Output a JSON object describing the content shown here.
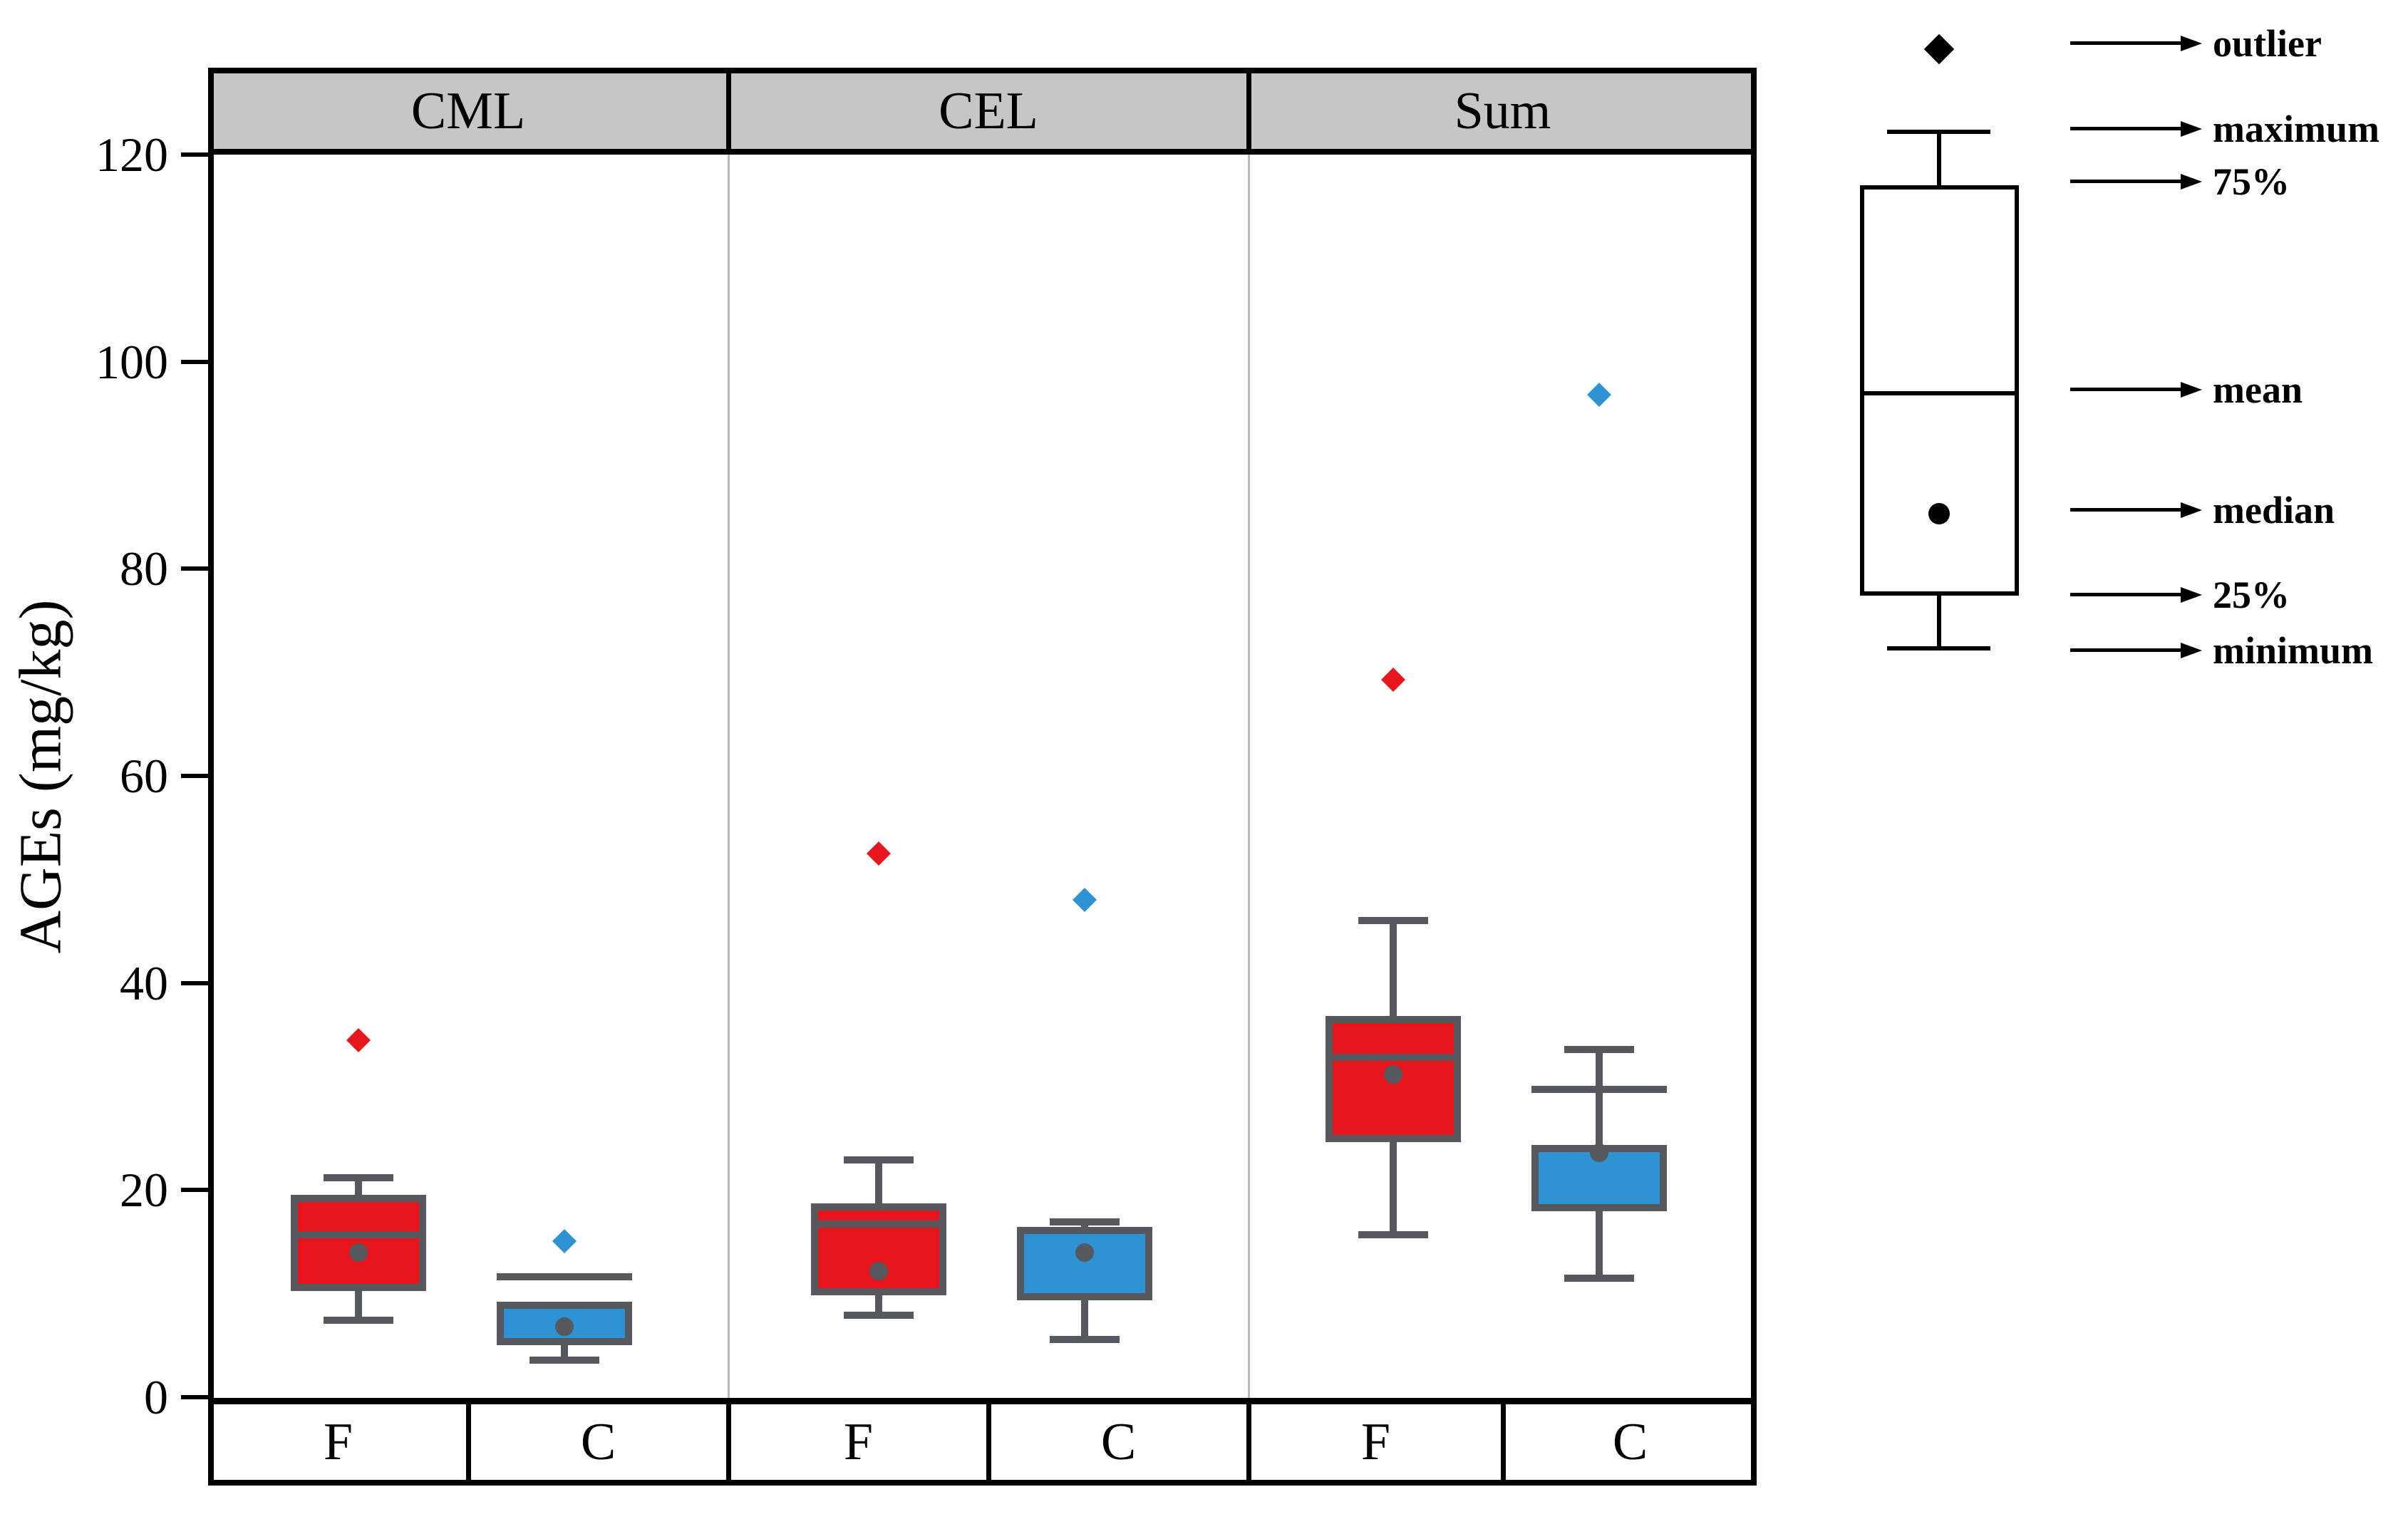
{
  "chart_data": {
    "type": "box",
    "title": "",
    "ylabel": "AGEs (mg/kg)",
    "ylim": [
      0,
      120
    ],
    "yticks": [
      0,
      20,
      40,
      60,
      80,
      100,
      120
    ],
    "grid": false,
    "panels": [
      "CML",
      "CEL",
      "Sum"
    ],
    "group_labels": [
      "F",
      "C"
    ],
    "legend_items": [
      "outlier",
      "maximum",
      "75%",
      "mean",
      "median",
      "25%",
      "minimum"
    ],
    "series": [
      {
        "panel": "CML",
        "group": "F",
        "min": 7.4,
        "q1": 10.6,
        "median": 14.0,
        "mean": 15.7,
        "q3": 19.2,
        "max": 21.2,
        "outliers": [
          34.5
        ]
      },
      {
        "panel": "CML",
        "group": "C",
        "min": 3.6,
        "q1": 5.4,
        "median": 6.8,
        "mean": 11.6,
        "q3": 8.9,
        "max": null,
        "outliers": [
          15.1
        ]
      },
      {
        "panel": "CEL",
        "group": "F",
        "min": 7.9,
        "q1": 10.2,
        "median": 12.2,
        "mean": 16.7,
        "q3": 18.4,
        "max": 22.9,
        "outliers": [
          52.5
        ]
      },
      {
        "panel": "CEL",
        "group": "C",
        "min": 5.6,
        "q1": 9.7,
        "median": 14.0,
        "mean": null,
        "q3": 16.1,
        "max": 16.9,
        "outliers": [
          48.0
        ]
      },
      {
        "panel": "Sum",
        "group": "F",
        "min": 15.7,
        "q1": 25.0,
        "median": 31.2,
        "mean": 32.8,
        "q3": 36.5,
        "max": 46.0,
        "outliers": [
          69.3
        ]
      },
      {
        "panel": "Sum",
        "group": "C",
        "min": 11.5,
        "q1": 18.3,
        "median": 23.6,
        "mean": 29.7,
        "q3": 24.0,
        "max": 33.6,
        "outliers": [
          96.8
        ]
      }
    ],
    "colors": {
      "F": "#e7161d",
      "C": "#2e92d4",
      "box_stroke": "#55585c",
      "header_fill": "#c6c6c6",
      "panel_divider": "#b9b9b9",
      "frame": "#000000"
    }
  }
}
